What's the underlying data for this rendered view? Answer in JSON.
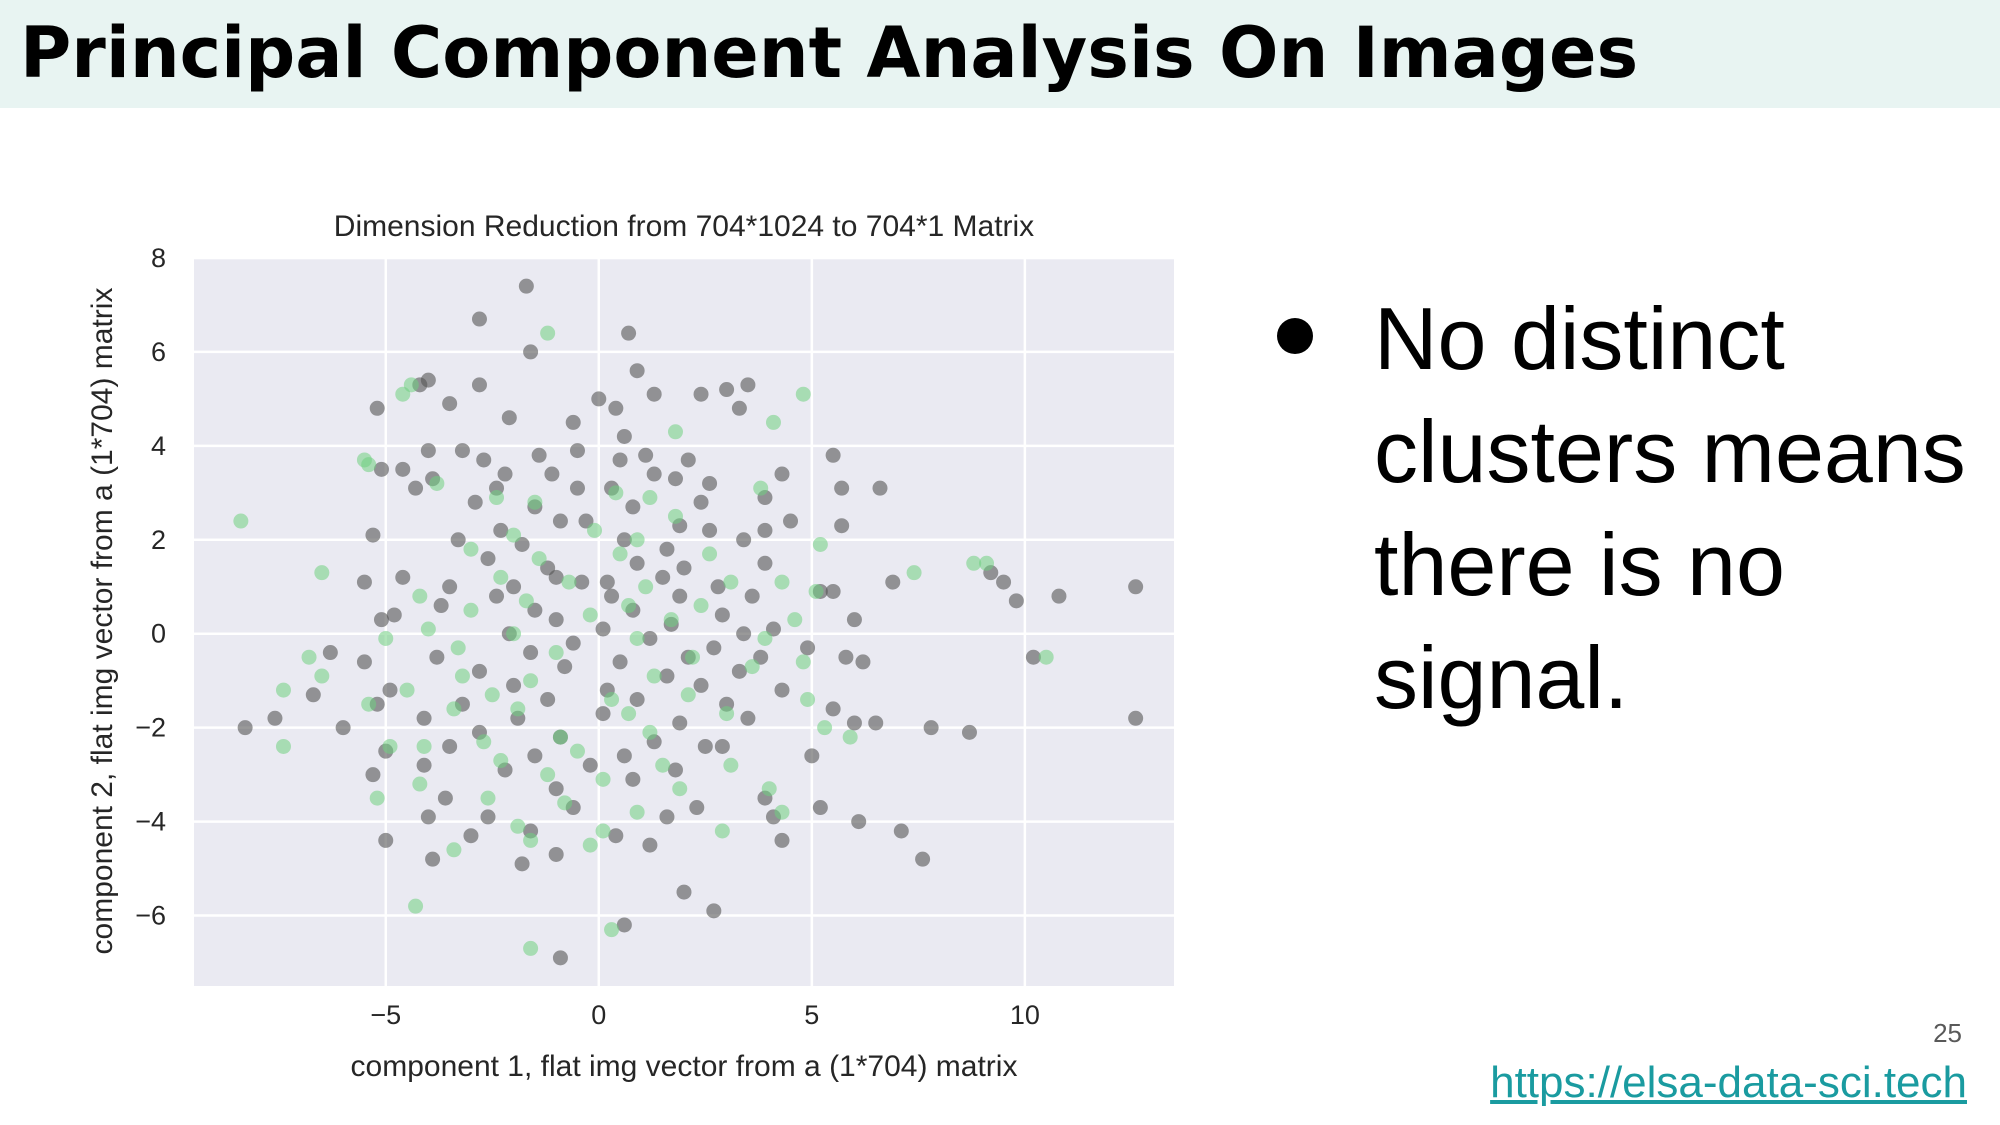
{
  "slide": {
    "title": "Principal Component Analysis On Images",
    "bullet": "No distinct clusters means there is no signal.",
    "page_number": "25",
    "link": "https://elsa-data-sci.tech"
  },
  "colors": {
    "title_band": "#e8f4f2",
    "plot_bg": "#eaeaf2",
    "series_gray": "#555555",
    "series_green": "#6fcf7f",
    "link": "#1a9ba0"
  },
  "chart_data": {
    "type": "scatter",
    "title": "Dimension Reduction from 704*1024 to 704*1 Matrix",
    "xlabel": "component 1, flat img vector from a (1*704) matrix",
    "ylabel": "component 2, flat img vector from a (1*704) matrix",
    "xlim": [
      -9.5,
      13.5
    ],
    "ylim": [
      -7.5,
      8
    ],
    "xticks": [
      -5,
      0,
      5,
      10
    ],
    "yticks": [
      -6,
      -4,
      -2,
      0,
      2,
      4,
      6,
      8
    ],
    "xtick_labels": [
      "−5",
      "0",
      "5",
      "10"
    ],
    "ytick_labels": [
      "−6",
      "−4",
      "−2",
      "0",
      "2",
      "4",
      "6",
      "8"
    ],
    "grid": true,
    "series": [
      {
        "color": "#555555",
        "points": [
          [
            -1.7,
            7.4
          ],
          [
            -2.8,
            6.7
          ],
          [
            0.7,
            6.4
          ],
          [
            -1.6,
            6.0
          ],
          [
            0.9,
            5.6
          ],
          [
            -4.0,
            5.4
          ],
          [
            -4.2,
            5.3
          ],
          [
            -2.8,
            5.3
          ],
          [
            -5.2,
            4.8
          ],
          [
            -3.5,
            4.9
          ],
          [
            0.0,
            5.0
          ],
          [
            0.4,
            4.8
          ],
          [
            1.3,
            5.1
          ],
          [
            2.4,
            5.1
          ],
          [
            3.0,
            5.2
          ],
          [
            3.5,
            5.3
          ],
          [
            -0.6,
            4.5
          ],
          [
            3.3,
            4.8
          ],
          [
            -2.1,
            4.6
          ],
          [
            0.6,
            4.2
          ],
          [
            -4.0,
            3.9
          ],
          [
            -5.1,
            3.5
          ],
          [
            -4.6,
            3.5
          ],
          [
            -3.2,
            3.9
          ],
          [
            5.5,
            3.8
          ],
          [
            -2.7,
            3.7
          ],
          [
            -1.4,
            3.8
          ],
          [
            -0.5,
            3.9
          ],
          [
            1.1,
            3.8
          ],
          [
            0.5,
            3.7
          ],
          [
            2.1,
            3.7
          ],
          [
            -3.9,
            3.3
          ],
          [
            -4.3,
            3.1
          ],
          [
            -2.2,
            3.4
          ],
          [
            -1.1,
            3.4
          ],
          [
            1.3,
            3.4
          ],
          [
            1.8,
            3.3
          ],
          [
            2.6,
            3.2
          ],
          [
            4.3,
            3.4
          ],
          [
            5.7,
            3.1
          ],
          [
            6.6,
            3.1
          ],
          [
            -2.4,
            3.1
          ],
          [
            -0.5,
            3.1
          ],
          [
            0.3,
            3.1
          ],
          [
            -2.9,
            2.8
          ],
          [
            -1.5,
            2.7
          ],
          [
            0.8,
            2.7
          ],
          [
            2.4,
            2.8
          ],
          [
            3.9,
            2.9
          ],
          [
            -0.9,
            2.4
          ],
          [
            -2.3,
            2.2
          ],
          [
            -0.3,
            2.4
          ],
          [
            1.9,
            2.3
          ],
          [
            2.6,
            2.2
          ],
          [
            3.9,
            2.2
          ],
          [
            4.5,
            2.4
          ],
          [
            5.7,
            2.3
          ],
          [
            -5.3,
            2.1
          ],
          [
            -3.3,
            2.0
          ],
          [
            -1.8,
            1.9
          ],
          [
            0.6,
            2.0
          ],
          [
            1.6,
            1.8
          ],
          [
            3.4,
            2.0
          ],
          [
            -2.6,
            1.6
          ],
          [
            -1.2,
            1.4
          ],
          [
            0.9,
            1.5
          ],
          [
            2.0,
            1.4
          ],
          [
            3.9,
            1.5
          ],
          [
            -2.0,
            1.0
          ],
          [
            -1.0,
            1.2
          ],
          [
            1.5,
            1.2
          ],
          [
            -4.6,
            1.2
          ],
          [
            -0.4,
            1.1
          ],
          [
            0.2,
            1.1
          ],
          [
            2.8,
            1.0
          ],
          [
            -5.5,
            1.1
          ],
          [
            -3.5,
            1.0
          ],
          [
            6.9,
            1.1
          ],
          [
            9.2,
            1.3
          ],
          [
            9.5,
            1.1
          ],
          [
            -2.4,
            0.8
          ],
          [
            0.3,
            0.8
          ],
          [
            1.9,
            0.8
          ],
          [
            3.6,
            0.8
          ],
          [
            5.2,
            0.9
          ],
          [
            5.5,
            0.9
          ],
          [
            9.8,
            0.7
          ],
          [
            10.8,
            0.8
          ],
          [
            12.6,
            1.0
          ],
          [
            -1.5,
            0.5
          ],
          [
            0.8,
            0.5
          ],
          [
            2.9,
            0.4
          ],
          [
            -3.7,
            0.6
          ],
          [
            -1.0,
            0.3
          ],
          [
            -4.8,
            0.4
          ],
          [
            -5.1,
            0.3
          ],
          [
            4.1,
            0.1
          ],
          [
            6.0,
            0.3
          ],
          [
            -2.1,
            0.0
          ],
          [
            0.1,
            0.1
          ],
          [
            1.7,
            0.2
          ],
          [
            3.4,
            0.0
          ],
          [
            -0.6,
            -0.2
          ],
          [
            1.2,
            -0.1
          ],
          [
            2.7,
            -0.3
          ],
          [
            4.9,
            -0.3
          ],
          [
            5.8,
            -0.5
          ],
          [
            6.2,
            -0.6
          ],
          [
            -3.8,
            -0.5
          ],
          [
            -1.6,
            -0.4
          ],
          [
            0.5,
            -0.6
          ],
          [
            2.1,
            -0.5
          ],
          [
            3.8,
            -0.5
          ],
          [
            -5.5,
            -0.6
          ],
          [
            -6.3,
            -0.4
          ],
          [
            -2.8,
            -0.8
          ],
          [
            -0.8,
            -0.7
          ],
          [
            1.6,
            -0.9
          ],
          [
            3.3,
            -0.8
          ],
          [
            10.2,
            -0.5
          ],
          [
            -4.9,
            -1.2
          ],
          [
            -2.0,
            -1.1
          ],
          [
            0.2,
            -1.2
          ],
          [
            2.4,
            -1.1
          ],
          [
            4.3,
            -1.2
          ],
          [
            -3.2,
            -1.5
          ],
          [
            -1.2,
            -1.4
          ],
          [
            0.9,
            -1.4
          ],
          [
            3.0,
            -1.5
          ],
          [
            5.5,
            -1.6
          ],
          [
            -6.7,
            -1.3
          ],
          [
            -5.2,
            -1.5
          ],
          [
            -1.9,
            -1.8
          ],
          [
            0.1,
            -1.7
          ],
          [
            1.9,
            -1.9
          ],
          [
            3.5,
            -1.8
          ],
          [
            6.0,
            -1.9
          ],
          [
            -4.1,
            -1.8
          ],
          [
            -7.6,
            -1.8
          ],
          [
            -8.3,
            -2.0
          ],
          [
            -6.0,
            -2.0
          ],
          [
            -2.8,
            -2.1
          ],
          [
            -0.9,
            -2.2
          ],
          [
            1.3,
            -2.3
          ],
          [
            2.5,
            -2.4
          ],
          [
            6.5,
            -1.9
          ],
          [
            7.8,
            -2.0
          ],
          [
            8.7,
            -2.1
          ],
          [
            12.6,
            -1.8
          ],
          [
            -3.5,
            -2.4
          ],
          [
            -1.5,
            -2.6
          ],
          [
            0.6,
            -2.6
          ],
          [
            2.9,
            -2.4
          ],
          [
            5.0,
            -2.6
          ],
          [
            -5.0,
            -2.5
          ],
          [
            -4.1,
            -2.8
          ],
          [
            -2.2,
            -2.9
          ],
          [
            -0.2,
            -2.8
          ],
          [
            1.8,
            -2.9
          ],
          [
            -5.3,
            -3.0
          ],
          [
            -3.6,
            -3.5
          ],
          [
            -1.0,
            -3.3
          ],
          [
            0.8,
            -3.1
          ],
          [
            2.3,
            -3.7
          ],
          [
            3.9,
            -3.5
          ],
          [
            -4.0,
            -3.9
          ],
          [
            -2.6,
            -3.9
          ],
          [
            -0.6,
            -3.7
          ],
          [
            1.6,
            -3.9
          ],
          [
            4.1,
            -3.9
          ],
          [
            5.2,
            -3.7
          ],
          [
            6.1,
            -4.0
          ],
          [
            -5.0,
            -4.4
          ],
          [
            -3.0,
            -4.3
          ],
          [
            -1.6,
            -4.2
          ],
          [
            0.4,
            -4.3
          ],
          [
            1.2,
            -4.5
          ],
          [
            4.3,
            -4.4
          ],
          [
            7.1,
            -4.2
          ],
          [
            -3.9,
            -4.8
          ],
          [
            -1.8,
            -4.9
          ],
          [
            -1.0,
            -4.7
          ],
          [
            2.0,
            -5.5
          ],
          [
            2.7,
            -5.9
          ],
          [
            7.6,
            -4.8
          ],
          [
            0.6,
            -6.2
          ],
          [
            -0.9,
            -6.9
          ]
        ]
      },
      {
        "color": "#6fcf7f",
        "points": [
          [
            -1.2,
            6.4
          ],
          [
            -4.4,
            5.3
          ],
          [
            -4.6,
            5.1
          ],
          [
            4.8,
            5.1
          ],
          [
            4.1,
            4.5
          ],
          [
            1.8,
            4.3
          ],
          [
            -5.5,
            3.7
          ],
          [
            -5.4,
            3.6
          ],
          [
            -3.8,
            3.2
          ],
          [
            -2.4,
            2.9
          ],
          [
            -1.5,
            2.8
          ],
          [
            0.4,
            3.0
          ],
          [
            1.2,
            2.9
          ],
          [
            3.8,
            3.1
          ],
          [
            -8.4,
            2.4
          ],
          [
            -2.0,
            2.1
          ],
          [
            -0.1,
            2.2
          ],
          [
            1.8,
            2.5
          ],
          [
            0.9,
            2.0
          ],
          [
            -3.0,
            1.8
          ],
          [
            -1.4,
            1.6
          ],
          [
            0.5,
            1.7
          ],
          [
            2.6,
            1.7
          ],
          [
            5.2,
            1.9
          ],
          [
            8.8,
            1.5
          ],
          [
            9.1,
            1.5
          ],
          [
            7.4,
            1.3
          ],
          [
            -6.5,
            1.3
          ],
          [
            -2.3,
            1.2
          ],
          [
            -0.7,
            1.1
          ],
          [
            1.1,
            1.0
          ],
          [
            3.1,
            1.1
          ],
          [
            4.3,
            1.1
          ],
          [
            -4.2,
            0.8
          ],
          [
            -1.7,
            0.7
          ],
          [
            0.7,
            0.6
          ],
          [
            2.4,
            0.6
          ],
          [
            5.1,
            0.9
          ],
          [
            -3.0,
            0.5
          ],
          [
            -0.2,
            0.4
          ],
          [
            1.7,
            0.3
          ],
          [
            4.6,
            0.3
          ],
          [
            -4.0,
            0.1
          ],
          [
            -2.0,
            0.0
          ],
          [
            0.9,
            -0.1
          ],
          [
            3.9,
            -0.1
          ],
          [
            -5.0,
            -0.1
          ],
          [
            -3.3,
            -0.3
          ],
          [
            -1.0,
            -0.4
          ],
          [
            2.2,
            -0.5
          ],
          [
            4.8,
            -0.6
          ],
          [
            -6.8,
            -0.5
          ],
          [
            -6.5,
            -0.9
          ],
          [
            -3.2,
            -0.9
          ],
          [
            -1.6,
            -1.0
          ],
          [
            1.3,
            -0.9
          ],
          [
            3.6,
            -0.7
          ],
          [
            10.5,
            -0.5
          ],
          [
            -7.4,
            -1.2
          ],
          [
            -4.5,
            -1.2
          ],
          [
            -2.5,
            -1.3
          ],
          [
            0.3,
            -1.4
          ],
          [
            2.1,
            -1.3
          ],
          [
            4.9,
            -1.4
          ],
          [
            -5.4,
            -1.5
          ],
          [
            -3.4,
            -1.6
          ],
          [
            -1.9,
            -1.6
          ],
          [
            0.7,
            -1.7
          ],
          [
            3.0,
            -1.7
          ],
          [
            5.3,
            -2.0
          ],
          [
            -4.9,
            -2.4
          ],
          [
            -2.7,
            -2.3
          ],
          [
            -0.9,
            -2.2
          ],
          [
            1.2,
            -2.1
          ],
          [
            5.9,
            -2.2
          ],
          [
            -7.4,
            -2.4
          ],
          [
            -4.1,
            -2.4
          ],
          [
            -2.3,
            -2.7
          ],
          [
            -0.5,
            -2.5
          ],
          [
            1.5,
            -2.8
          ],
          [
            3.1,
            -2.8
          ],
          [
            -4.2,
            -3.2
          ],
          [
            -1.2,
            -3.0
          ],
          [
            0.1,
            -3.1
          ],
          [
            1.9,
            -3.3
          ],
          [
            4.0,
            -3.3
          ],
          [
            -5.2,
            -3.5
          ],
          [
            -2.6,
            -3.5
          ],
          [
            -0.8,
            -3.6
          ],
          [
            0.9,
            -3.8
          ],
          [
            4.3,
            -3.8
          ],
          [
            -1.9,
            -4.1
          ],
          [
            0.1,
            -4.2
          ],
          [
            2.9,
            -4.2
          ],
          [
            -3.4,
            -4.6
          ],
          [
            -1.6,
            -4.4
          ],
          [
            -0.2,
            -4.5
          ],
          [
            -4.3,
            -5.8
          ],
          [
            0.3,
            -6.3
          ],
          [
            -1.6,
            -6.7
          ]
        ]
      }
    ]
  }
}
